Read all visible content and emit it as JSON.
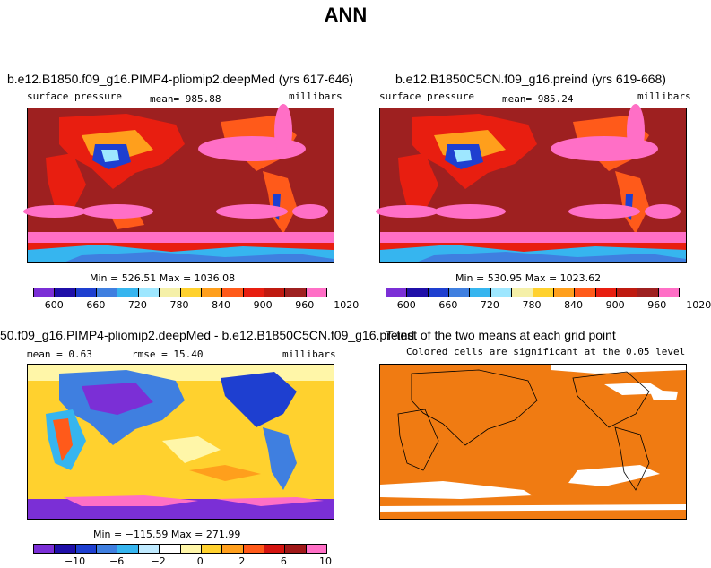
{
  "figure": {
    "title": "ANN"
  },
  "chart_data": [
    {
      "type": "heatmap",
      "title": "b.e12.B1850.f09_g16.PIMP4-pliomip2.deepMed (yrs 617-646)",
      "variable": "surface pressure",
      "mean_label": "mean= 985.88",
      "units": "millibars",
      "min_max_label": "Min = 526.51 Max = 1036.08",
      "min": 526.51,
      "max": 1036.08,
      "colorbar_ticks": [
        "600",
        "660",
        "720",
        "780",
        "840",
        "900",
        "960",
        "1020"
      ],
      "colors": [
        "#7b2fd6",
        "#1f0fa8",
        "#1e3fd0",
        "#3f7fe0",
        "#36b5ef",
        "#9ee7ff",
        "#f5f0a8",
        "#ffd12e",
        "#ff9f1c",
        "#ff5a1a",
        "#e81e10",
        "#bf1a10",
        "#9e2020",
        "#ff6fc6"
      ]
    },
    {
      "type": "heatmap",
      "title": "b.e12.B1850C5CN.f09_g16.preind (yrs 619-668)",
      "variable": "surface pressure",
      "mean_label": "mean= 985.24",
      "units": "millibars",
      "min_max_label": "Min = 530.95 Max = 1023.62",
      "min": 530.95,
      "max": 1023.62,
      "colorbar_ticks": [
        "600",
        "660",
        "720",
        "780",
        "840",
        "900",
        "960",
        "1020"
      ],
      "colors": [
        "#7b2fd6",
        "#1f0fa8",
        "#1e3fd0",
        "#3f7fe0",
        "#36b5ef",
        "#9ee7ff",
        "#f5f0a8",
        "#ffd12e",
        "#ff9f1c",
        "#ff5a1a",
        "#e81e10",
        "#bf1a10",
        "#9e2020",
        "#ff6fc6"
      ]
    },
    {
      "type": "heatmap",
      "title": "50.f09_g16.PIMP4-pliomip2.deepMed - b.e12.B1850C5CN.f09_g16.preind",
      "mean_label": "mean =    0.63",
      "rmse_label": "rmse =  15.40",
      "units": "millibars",
      "min_max_label": "Min = −115.59 Max = 271.99",
      "min": -115.59,
      "max": 271.99,
      "colorbar_ticks": [
        "−10",
        "−6",
        "−2",
        "0",
        "2",
        "6",
        "10"
      ],
      "colors": [
        "#7b2fd6",
        "#1f0fa8",
        "#1e3fd0",
        "#3f7fe0",
        "#36b5ef",
        "#bfeaff",
        "#ffffff",
        "#fff6a8",
        "#ffd12e",
        "#ff9f1c",
        "#ff5a1a",
        "#d41410",
        "#a01818",
        "#ff6fc6"
      ]
    },
    {
      "type": "heatmap",
      "title": "T-test of the two means at each grid point",
      "subtitle": "Colored cells are significant at the 0.05 level",
      "colors": [
        "#f07b12",
        "#ffffff"
      ]
    }
  ]
}
